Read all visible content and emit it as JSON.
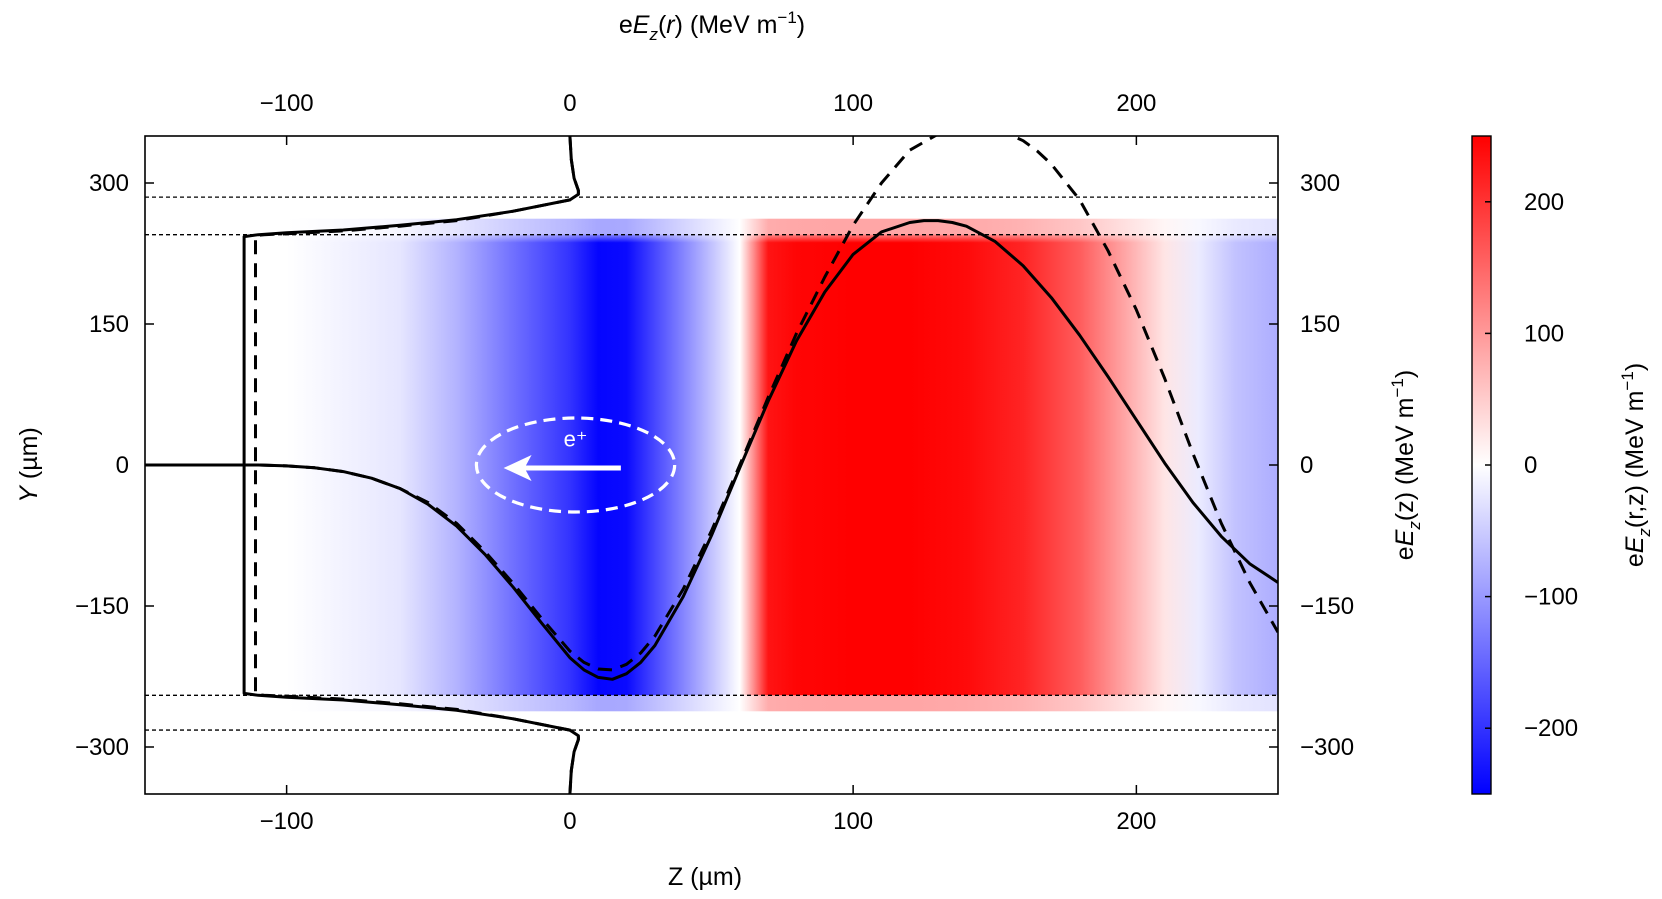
{
  "chart_data": {
    "type": "heatmap",
    "title": "",
    "bottom_axis": {
      "label_parts": [
        "Z (µm)"
      ],
      "range": [
        -150,
        250
      ],
      "ticks": [
        -100,
        0,
        100,
        200
      ],
      "tick_labels": [
        "−100",
        "0",
        "100",
        "200"
      ]
    },
    "top_axis": {
      "label_parts": [
        "e",
        "E",
        "z",
        "(",
        "r",
        ") (MeV m",
        "−1",
        ")"
      ],
      "range": [
        -150,
        250
      ],
      "ticks": [
        -100,
        0,
        100,
        200
      ],
      "tick_labels": [
        "−100",
        "0",
        "100",
        "200"
      ]
    },
    "left_axis": {
      "label_parts": [
        "Y",
        " (µm)"
      ],
      "range": [
        -350,
        350
      ],
      "ticks": [
        300,
        150,
        0,
        -150,
        -300
      ],
      "tick_labels": [
        "300",
        "150",
        "0",
        "−150",
        "−300"
      ]
    },
    "right_axis": {
      "label_parts": [
        "e",
        "E",
        "z",
        "(z) (MeV m",
        "−1",
        ")"
      ],
      "range": [
        -350,
        350
      ],
      "ticks": [
        300,
        150,
        0,
        -150,
        -300
      ],
      "tick_labels": [
        "300",
        "150",
        "0",
        "−150",
        "−300"
      ]
    },
    "colorbar": {
      "label_parts": [
        "e",
        "E",
        "z",
        "(r,z) (MeV m",
        "−1",
        ")"
      ],
      "range": [
        -250,
        250
      ],
      "ticks": [
        200,
        100,
        0,
        -100,
        -200
      ],
      "tick_labels": [
        "200",
        "100",
        "0",
        "−100",
        "−200"
      ],
      "colors": {
        "low": "#0000ff",
        "mid": "#ffffff",
        "high": "#ff0000"
      }
    },
    "field_map": {
      "description_units": "z in µm, value in MeV m−1",
      "z": [
        -150,
        -100,
        -60,
        -40,
        -20,
        0,
        10,
        20,
        35,
        50,
        60,
        70,
        80,
        100,
        120,
        140,
        160,
        180,
        200,
        210,
        222,
        235,
        250
      ],
      "value": [
        0,
        0,
        -25,
        -75,
        -140,
        -200,
        -245,
        -240,
        -150,
        -60,
        0,
        230,
        245,
        250,
        250,
        240,
        215,
        160,
        70,
        25,
        -20,
        -60,
        -80
      ],
      "inner_band_y": [
        -245,
        245
      ],
      "outer_band_y": [
        -282,
        282
      ]
    },
    "boundary_lines_y": [
      285,
      245,
      -245,
      -282
    ],
    "series": [
      {
        "style": "solid",
        "curves": [
          {
            "z": [
              -150,
              -140,
              -130,
              -120,
              -110,
              -100,
              -90,
              -80,
              -70,
              -60,
              -50,
              -40,
              -30,
              -20,
              -10,
              0,
              5,
              10,
              15,
              20,
              25,
              30,
              40,
              50,
              60,
              70,
              80,
              90,
              100,
              110,
              120,
              125,
              130,
              135,
              140,
              150,
              160,
              170,
              180,
              190,
              200,
              210,
              220,
              230,
              240,
              250
            ],
            "y": [
              0,
              0,
              0,
              0,
              0,
              -1,
              -3,
              -7,
              -14,
              -25,
              -42,
              -65,
              -95,
              -130,
              -168,
              -205,
              -218,
              -226,
              -228,
              -222,
              -210,
              -192,
              -140,
              -75,
              -3,
              68,
              132,
              184,
              224,
              248,
              258,
              260,
              260,
              258,
              254,
              238,
              212,
              178,
              138,
              94,
              48,
              2,
              -40,
              -76,
              -105,
              -125
            ]
          },
          {
            "z": [
              0,
              0.5,
              1.5,
              3,
              3,
              0,
              -20,
              -40,
              -60,
              -80,
              -100,
              -110,
              -115,
              -115,
              -110,
              -100,
              -80,
              -60,
              -40,
              -20,
              0,
              3,
              3,
              1.5,
              0.5,
              0
            ],
            "y": [
              350,
              325,
              305,
              292,
              288,
              282,
              270,
              261,
              255,
              250,
              247,
              245,
              243,
              -243,
              -245,
              -247,
              -250,
              -255,
              -261,
              -270,
              -282,
              -288,
              -292,
              -305,
              -325,
              -350
            ]
          }
        ]
      },
      {
        "style": "dashed",
        "curves": [
          {
            "z": [
              -150,
              -130,
              -110,
              -100,
              -90,
              -80,
              -70,
              -60,
              -50,
              -40,
              -30,
              -20,
              -10,
              0,
              5,
              10,
              15,
              20,
              25,
              30,
              40,
              50,
              60,
              70,
              80,
              90,
              100,
              110,
              120,
              130,
              140,
              150,
              155,
              160,
              165,
              170,
              180,
              190,
              200,
              210,
              220,
              230,
              240,
              250
            ],
            "y": [
              0,
              0,
              0,
              -1,
              -3,
              -7,
              -14,
              -25,
              -40,
              -62,
              -92,
              -126,
              -163,
              -198,
              -210,
              -217,
              -218,
              -212,
              -200,
              -182,
              -132,
              -70,
              0,
              72,
              140,
              200,
              255,
              300,
              335,
              352,
              360,
              358,
              352,
              345,
              334,
              320,
              282,
              228,
              165,
              92,
              12,
              -62,
              -125,
              -178
            ]
          },
          {
            "z": [
              0,
              0.5,
              1.5,
              3,
              3,
              0,
              -20,
              -40,
              -60,
              -80,
              -100,
              -108,
              -111,
              -111,
              -108,
              -100,
              -80,
              -60,
              -40,
              -20,
              0,
              3,
              3,
              1.5,
              0.5,
              0
            ],
            "y": [
              350,
              325,
              305,
              292,
              288,
              282,
              270,
              260,
              254,
              249,
              246,
              245,
              244,
              -244,
              -245,
              -246,
              -249,
              -254,
              -260,
              -270,
              -282,
              -288,
              -292,
              -305,
              -325,
              -350
            ]
          }
        ]
      }
    ],
    "annotations": [
      {
        "text": "e⁺",
        "kind": "particle-label",
        "z": 2,
        "y": 7
      },
      {
        "kind": "bunch-ellipse",
        "center_z": 2,
        "center_y": 0,
        "semi_z": 35,
        "semi_y": 50
      },
      {
        "kind": "direction-arrow",
        "from_z": 18,
        "to_z": -22,
        "y": 0
      }
    ]
  }
}
